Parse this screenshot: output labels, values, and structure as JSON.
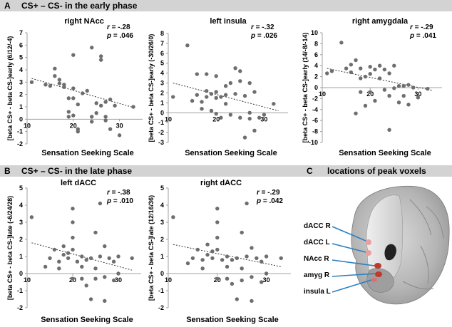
{
  "sections": {
    "A": {
      "letter": "A",
      "title": "CS+ – CS- in the early phase"
    },
    "B": {
      "letter": "B",
      "title": "CS+ – CS- in the late phase"
    },
    "C": {
      "letter": "C",
      "title": "locations of peak voxels"
    }
  },
  "chart_data": [
    {
      "id": "right-nacc",
      "type": "scatter",
      "title": "right NAcc",
      "xlabel": "Sensation Seeking Scale",
      "ylabel": "[beta CS+ - beta CS-]early (6/12/-4)",
      "xlim": [
        10,
        35
      ],
      "ylim": [
        -2,
        7
      ],
      "xticks": [
        10,
        20,
        30
      ],
      "yticks": [
        -2,
        -1,
        0,
        1,
        2,
        3,
        4,
        5,
        6,
        7
      ],
      "stats": {
        "r_label": "r",
        "r_value": "= -.28",
        "p_label": "p",
        "p_value": "= .046"
      },
      "trendline": [
        [
          11,
          3.3
        ],
        [
          33,
          0.95
        ]
      ],
      "points": [
        [
          11,
          3.0
        ],
        [
          14,
          2.8
        ],
        [
          15,
          2.7
        ],
        [
          16,
          4.1
        ],
        [
          16,
          3.5
        ],
        [
          17,
          3.2
        ],
        [
          17,
          2.9
        ],
        [
          18,
          2.6
        ],
        [
          18,
          2.8
        ],
        [
          19,
          1.7
        ],
        [
          19,
          0.6
        ],
        [
          19,
          0.2
        ],
        [
          20,
          5.2
        ],
        [
          20,
          2.5
        ],
        [
          20,
          1.7
        ],
        [
          20,
          0.3
        ],
        [
          21,
          1.2
        ],
        [
          21,
          -0.8
        ],
        [
          21,
          -1.0
        ],
        [
          22,
          2.1
        ],
        [
          23,
          2.3
        ],
        [
          24,
          5.8
        ],
        [
          24,
          0.2
        ],
        [
          24,
          -0.2
        ],
        [
          25,
          1.3
        ],
        [
          25,
          0.5
        ],
        [
          26,
          5.1
        ],
        [
          26,
          4.8
        ],
        [
          26,
          1.1
        ],
        [
          27,
          1.4
        ],
        [
          27,
          0.2
        ],
        [
          27,
          -0.1
        ],
        [
          28,
          1.6
        ],
        [
          28,
          -0.8
        ],
        [
          29,
          1.1
        ],
        [
          30,
          -1.3
        ],
        [
          33,
          1.0
        ]
      ]
    },
    {
      "id": "left-insula",
      "type": "scatter",
      "title": "left insula",
      "xlabel": "Sensation Seeking Scale",
      "ylabel": "[beta CS+ - beta CS-]early (-30/26/0)",
      "xlim": [
        10,
        35
      ],
      "ylim": [
        -3,
        8
      ],
      "xticks": [
        10,
        20,
        30
      ],
      "yticks": [
        -3,
        -2,
        -1,
        0,
        1,
        2,
        3,
        4,
        5,
        6,
        7,
        8
      ],
      "stats": {
        "r_label": "r",
        "r_value": "= -.32",
        "p_label": "p",
        "p_value": "= .026"
      },
      "trendline": [
        [
          11,
          3.0
        ],
        [
          33,
          0.2
        ]
      ],
      "points": [
        [
          11,
          1.6
        ],
        [
          14,
          6.8
        ],
        [
          15,
          1.2
        ],
        [
          16,
          3.9
        ],
        [
          16,
          1.8
        ],
        [
          17,
          1.1
        ],
        [
          17,
          0.4
        ],
        [
          18,
          3.9
        ],
        [
          18,
          2.2
        ],
        [
          18,
          1.6
        ],
        [
          19,
          1.9
        ],
        [
          19,
          0.2
        ],
        [
          20,
          3.7
        ],
        [
          20,
          2.1
        ],
        [
          20,
          1.5
        ],
        [
          20,
          -0.1
        ],
        [
          21,
          1.6
        ],
        [
          21,
          -0.5
        ],
        [
          22,
          2.7
        ],
        [
          22,
          1.8
        ],
        [
          22,
          0.9
        ],
        [
          23,
          3.0
        ],
        [
          23,
          -0.2
        ],
        [
          24,
          4.5
        ],
        [
          24,
          1.9
        ],
        [
          25,
          4.2
        ],
        [
          25,
          3.2
        ],
        [
          25,
          -0.5
        ],
        [
          26,
          1.7
        ],
        [
          26,
          -2.5
        ],
        [
          27,
          3.0
        ],
        [
          27,
          0.0
        ],
        [
          27,
          -0.6
        ],
        [
          28,
          2.1
        ],
        [
          28,
          -1.8
        ],
        [
          29,
          -0.5
        ],
        [
          30,
          -0.2
        ],
        [
          32,
          0.9
        ]
      ]
    },
    {
      "id": "right-amygdala",
      "type": "scatter",
      "title": "right amygdala",
      "xlabel": "Sensation Seeking Scale",
      "ylabel": "[beta CS+ - beta CS-]early (14/-8/-14)",
      "xlim": [
        10,
        35
      ],
      "ylim": [
        -10,
        10
      ],
      "xticks": [
        10,
        20,
        30
      ],
      "yticks": [
        -10,
        -8,
        -6,
        -4,
        -2,
        0,
        2,
        4,
        6,
        8,
        10
      ],
      "stats": {
        "r_label": "r",
        "r_value": "= -.29",
        "p_label": "p",
        "p_value": "= .041"
      },
      "trendline": [
        [
          11,
          3.5
        ],
        [
          33,
          -0.5
        ]
      ],
      "points": [
        [
          11,
          2.6
        ],
        [
          12,
          3.0
        ],
        [
          14,
          8.2
        ],
        [
          15,
          3.5
        ],
        [
          16,
          4.2
        ],
        [
          16,
          2.8
        ],
        [
          17,
          5.0
        ],
        [
          17,
          -4.7
        ],
        [
          18,
          3.5
        ],
        [
          18,
          1.7
        ],
        [
          18,
          -0.8
        ],
        [
          19,
          2.0
        ],
        [
          19,
          -3.3
        ],
        [
          20,
          3.8
        ],
        [
          20,
          2.5
        ],
        [
          20,
          -0.8
        ],
        [
          21,
          3.3
        ],
        [
          21,
          -2.4
        ],
        [
          22,
          4.0
        ],
        [
          22,
          1.7
        ],
        [
          23,
          3.3
        ],
        [
          23,
          -0.4
        ],
        [
          24,
          2.6
        ],
        [
          24,
          -1.5
        ],
        [
          24,
          -7.7
        ],
        [
          25,
          4.0
        ],
        [
          25,
          -0.1
        ],
        [
          26,
          0.3
        ],
        [
          26,
          -2.7
        ],
        [
          27,
          0.3
        ],
        [
          27,
          -1.5
        ],
        [
          28,
          0.5
        ],
        [
          28,
          -3.1
        ],
        [
          29,
          0.0
        ],
        [
          30,
          -1.8
        ],
        [
          32,
          -0.2
        ]
      ]
    },
    {
      "id": "left-dacc",
      "type": "scatter",
      "title": "left dACC",
      "xlabel": "Sensation Seeking Scale",
      "ylabel": "[beta CS+ - beta CS-]late (-6/24/28)",
      "xlim": [
        10,
        35
      ],
      "ylim": [
        -2,
        5
      ],
      "xticks": [
        10,
        20,
        30
      ],
      "yticks": [
        -2,
        -1,
        0,
        1,
        2,
        3,
        4,
        5
      ],
      "stats": {
        "r_label": "r",
        "r_value": "= -.38",
        "p_label": "p",
        "p_value": "= .010"
      },
      "trendline": [
        [
          11,
          1.8
        ],
        [
          33,
          0.2
        ]
      ],
      "points": [
        [
          11,
          3.3
        ],
        [
          14,
          0.4
        ],
        [
          15,
          0.9
        ],
        [
          16,
          1.4
        ],
        [
          17,
          0.7
        ],
        [
          17,
          0.3
        ],
        [
          18,
          1.6
        ],
        [
          18,
          1.1
        ],
        [
          19,
          1.2
        ],
        [
          19,
          0.9
        ],
        [
          20,
          3.8
        ],
        [
          20,
          3.0
        ],
        [
          20,
          2.1
        ],
        [
          20,
          1.4
        ],
        [
          20,
          -0.3
        ],
        [
          21,
          0.7
        ],
        [
          22,
          1.0
        ],
        [
          22,
          0.4
        ],
        [
          22,
          -0.3
        ],
        [
          23,
          0.8
        ],
        [
          23,
          -0.7
        ],
        [
          24,
          0.9
        ],
        [
          24,
          -1.5
        ],
        [
          25,
          2.4
        ],
        [
          25,
          0.3
        ],
        [
          25,
          -0.3
        ],
        [
          26,
          4.1
        ],
        [
          26,
          1.0
        ],
        [
          27,
          1.6
        ],
        [
          27,
          -0.2
        ],
        [
          27,
          -1.6
        ],
        [
          28,
          0.9
        ],
        [
          29,
          0.7
        ],
        [
          29,
          -0.4
        ],
        [
          30,
          1.0
        ],
        [
          30,
          0.0
        ],
        [
          33,
          0.9
        ]
      ]
    },
    {
      "id": "right-dacc",
      "type": "scatter",
      "title": "right dACC",
      "xlabel": "Sensation Seeking Scale",
      "ylabel": "[beta CS+ - beta CS-]late (12/16/36)",
      "xlim": [
        10,
        35
      ],
      "ylim": [
        -2,
        5
      ],
      "xticks": [
        10,
        20,
        30
      ],
      "yticks": [
        -2,
        -1,
        0,
        1,
        2,
        3,
        4,
        5
      ],
      "stats": {
        "r_label": "r",
        "r_value": "= -.29",
        "p_label": "p",
        "p_value": "= .042"
      },
      "trendline": [
        [
          11,
          1.7
        ],
        [
          33,
          0.4
        ]
      ],
      "points": [
        [
          11,
          3.3
        ],
        [
          14,
          0.6
        ],
        [
          15,
          0.9
        ],
        [
          16,
          1.4
        ],
        [
          17,
          0.8
        ],
        [
          17,
          0.3
        ],
        [
          18,
          1.7
        ],
        [
          18,
          1.1
        ],
        [
          19,
          1.3
        ],
        [
          19,
          0.9
        ],
        [
          20,
          3.8
        ],
        [
          20,
          3.0
        ],
        [
          20,
          2.1
        ],
        [
          20,
          1.4
        ],
        [
          20,
          -0.3
        ],
        [
          21,
          0.8
        ],
        [
          22,
          1.0
        ],
        [
          22,
          0.4
        ],
        [
          22,
          -0.3
        ],
        [
          23,
          0.8
        ],
        [
          23,
          -0.6
        ],
        [
          24,
          0.9
        ],
        [
          24,
          -1.5
        ],
        [
          25,
          2.4
        ],
        [
          25,
          0.3
        ],
        [
          25,
          -0.4
        ],
        [
          26,
          4.1
        ],
        [
          26,
          1.0
        ],
        [
          27,
          1.5
        ],
        [
          27,
          -0.2
        ],
        [
          27,
          -1.6
        ],
        [
          28,
          0.9
        ],
        [
          29,
          0.7
        ],
        [
          29,
          -0.5
        ],
        [
          30,
          1.0
        ],
        [
          30,
          0.0
        ],
        [
          33,
          0.9
        ]
      ]
    }
  ],
  "brain": {
    "labels": [
      "dACC R",
      "dACC L",
      "NAcc R",
      "amyg R",
      "insula L"
    ],
    "colors": {
      "marker": "#e8a0a0",
      "marker_dark": "#c0392b",
      "line": "#2a7fc1"
    }
  }
}
